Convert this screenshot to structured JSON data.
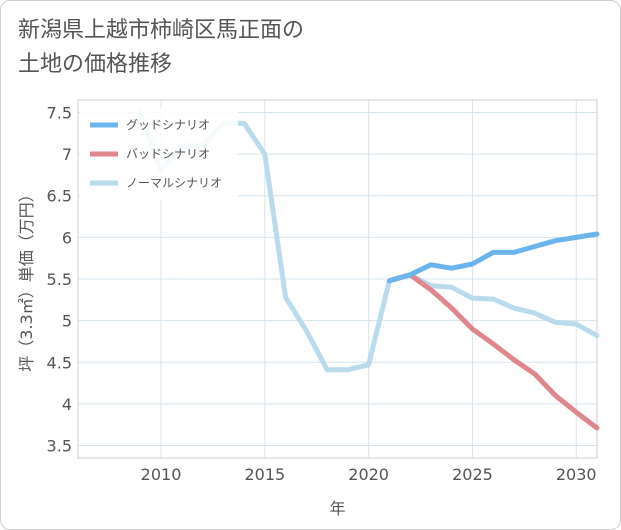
{
  "title_lines": [
    "新潟県上越市柿崎区馬正面の",
    "土地の価格推移"
  ],
  "chart_data": {
    "type": "line",
    "xlabel": "年",
    "ylabel": "坪（3.3㎡）単価（万円）",
    "xlim": [
      2006,
      2031
    ],
    "ylim": [
      3.35,
      7.65
    ],
    "xticks": [
      2010,
      2015,
      2020,
      2025,
      2030
    ],
    "yticks": [
      3.5,
      4,
      4.5,
      5,
      5.5,
      6,
      6.5,
      7,
      7.5
    ],
    "ytick_labels": [
      "3.5",
      "4",
      "4.5",
      "5",
      "5.5",
      "6",
      "6.5",
      "7",
      "7.5"
    ],
    "legend_position": "top-left",
    "series": [
      {
        "name": "グッドシナリオ",
        "color": "#6cb4ee",
        "x": [
          2021,
          2022,
          2023,
          2024,
          2025,
          2026,
          2027,
          2028,
          2029,
          2030,
          2031
        ],
        "y": [
          5.48,
          5.55,
          5.67,
          5.63,
          5.68,
          5.82,
          5.82,
          5.89,
          5.96,
          6.0,
          6.04
        ]
      },
      {
        "name": "バッドシナリオ",
        "color": "#e0868d",
        "x": [
          2021,
          2022,
          2023,
          2024,
          2025,
          2026,
          2027,
          2028,
          2029,
          2030,
          2031
        ],
        "y": [
          5.48,
          5.55,
          5.37,
          5.15,
          4.9,
          4.72,
          4.53,
          4.36,
          4.1,
          3.9,
          3.71
        ]
      },
      {
        "name": "ノーマルシナリオ",
        "color": "#b9dbec",
        "x": [
          2009,
          2010,
          2011,
          2012,
          2013,
          2014,
          2015,
          2016,
          2017,
          2018,
          2019,
          2020,
          2021,
          2022,
          2023,
          2024,
          2025,
          2026,
          2027,
          2028,
          2029,
          2030,
          2031
        ],
        "y": [
          7.5,
          6.8,
          7.1,
          7.1,
          7.37,
          7.37,
          7.0,
          5.28,
          4.88,
          4.41,
          4.41,
          4.47,
          5.48,
          5.55,
          5.42,
          5.4,
          5.27,
          5.26,
          5.15,
          5.09,
          4.98,
          4.96,
          4.82
        ]
      }
    ]
  }
}
